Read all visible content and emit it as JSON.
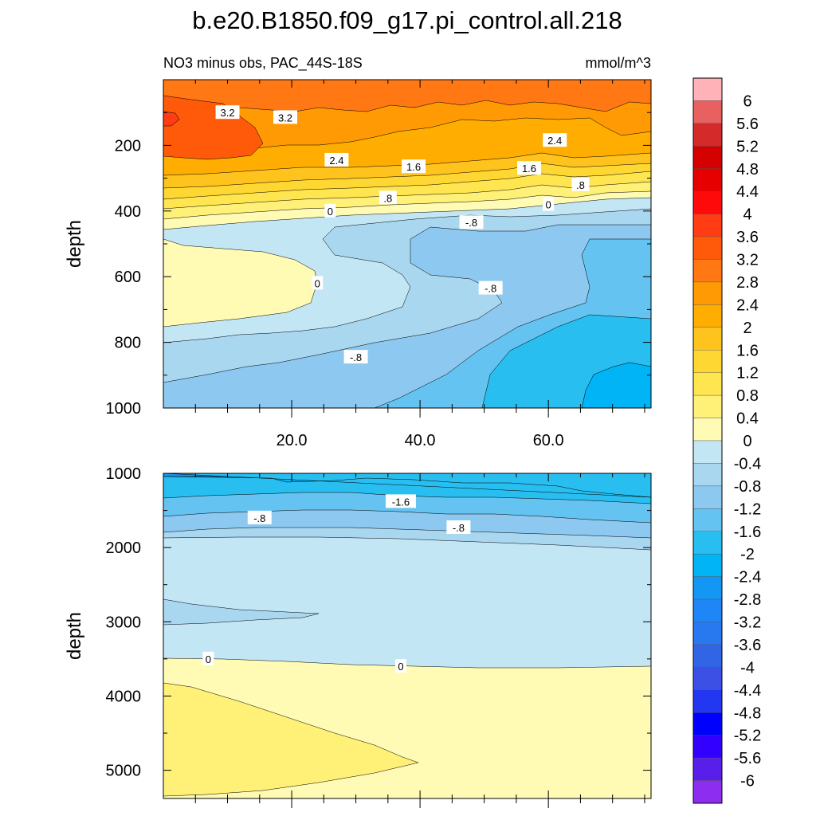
{
  "chart_data": [
    {
      "type": "contour",
      "panel": "upper",
      "title": "b.e20.B1850.f09_g17.pi_control.all.218",
      "subtitle_left": "NO3 minus obs, PAC_44S-18S",
      "subtitle_right": "mmol/m^3",
      "xlabel": "",
      "ylabel": "depth",
      "xlim": [
        0,
        76
      ],
      "ylim": [
        1000,
        0
      ],
      "x_ticks": [
        20,
        40,
        60
      ],
      "x_tick_labels": [
        "20.0",
        "40.0",
        "60.0"
      ],
      "y_ticks": [
        200,
        400,
        600,
        800,
        1000
      ],
      "y_tick_labels": [
        "200",
        "400",
        "600",
        "800",
        "1000"
      ],
      "depth_profile": [
        {
          "depth": 0,
          "range": "2.8 to 3.6"
        },
        {
          "depth": 100,
          "range": "2.8 to 3.6"
        },
        {
          "depth": 200,
          "range": "2.4 to 3.2"
        },
        {
          "depth": 300,
          "range": "0.8 to 1.6"
        },
        {
          "depth": 400,
          "range": "-0.8 to 0"
        },
        {
          "depth": 600,
          "range": "-1.2 to 0.4"
        },
        {
          "depth": 800,
          "range": "-1.6 to -0.4"
        },
        {
          "depth": 1000,
          "range": "-2.4 to -0.8"
        }
      ],
      "contour_labels": [
        {
          "text": "3.2",
          "x": 10,
          "depth": 100
        },
        {
          "text": "3.2",
          "x": 19,
          "depth": 115
        },
        {
          "text": "2.4",
          "x": 27,
          "depth": 245
        },
        {
          "text": "1.6",
          "x": 39,
          "depth": 265
        },
        {
          "text": "1.6",
          "x": 57,
          "depth": 270
        },
        {
          "text": "2.4",
          "x": 61,
          "depth": 185
        },
        {
          "text": ".8",
          "x": 35,
          "depth": 360
        },
        {
          "text": ".8",
          "x": 65,
          "depth": 320
        },
        {
          "text": "0",
          "x": 26,
          "depth": 400
        },
        {
          "text": "0",
          "x": 60,
          "depth": 380
        },
        {
          "text": "-.8",
          "x": 48,
          "depth": 435
        },
        {
          "text": "0",
          "x": 24,
          "depth": 620
        },
        {
          "text": "-.8",
          "x": 51,
          "depth": 635
        },
        {
          "text": "-.8",
          "x": 30,
          "depth": 845
        }
      ]
    },
    {
      "type": "contour",
      "panel": "lower",
      "xlabel": "",
      "ylabel": "depth",
      "xlim": [
        0,
        76
      ],
      "ylim": [
        5380,
        1000
      ],
      "y_ticks": [
        1000,
        2000,
        3000,
        4000,
        5000
      ],
      "y_tick_labels": [
        "1000",
        "2000",
        "3000",
        "4000",
        "5000"
      ],
      "depth_profile": [
        {
          "depth": 1000,
          "range": "-2.4 to -1.2"
        },
        {
          "depth": 1500,
          "range": "-1.2 to -0.8"
        },
        {
          "depth": 2000,
          "range": "-0.4 to 0"
        },
        {
          "depth": 3000,
          "range": "-0.8 to 0"
        },
        {
          "depth": 3600,
          "range": "0 to 0.4"
        },
        {
          "depth": 4500,
          "range": "0 to 0.8"
        },
        {
          "depth": 5300,
          "range": "0 to 0.4"
        }
      ],
      "contour_labels": [
        {
          "text": "-1.6",
          "x": 37,
          "depth": 1380
        },
        {
          "text": "-.8",
          "x": 15,
          "depth": 1600
        },
        {
          "text": "-.8",
          "x": 46,
          "depth": 1730
        },
        {
          "text": "0",
          "x": 7,
          "depth": 3500
        },
        {
          "text": "0",
          "x": 37,
          "depth": 3600
        }
      ]
    },
    {
      "type": "colorbar",
      "levels": [
        "6",
        "5.6",
        "5.2",
        "4.8",
        "4.4",
        "4",
        "3.6",
        "3.2",
        "2.8",
        "2.4",
        "2",
        "1.6",
        "1.2",
        "0.8",
        "0.4",
        "0",
        "-0.4",
        "-0.8",
        "-1.2",
        "-1.6",
        "-2",
        "-2.4",
        "-2.8",
        "-3.2",
        "-3.6",
        "-4",
        "-4.4",
        "-4.8",
        "-5.2",
        "-5.6",
        "-6"
      ],
      "colors_top_to_bottom": [
        "#ffb3b8",
        "#e86060",
        "#d42a2a",
        "#d50000",
        "#e60000",
        "#ff0a0a",
        "#ff3c14",
        "#ff5a0a",
        "#ff7814",
        "#ff9a05",
        "#ffad00",
        "#ffc31e",
        "#ffd732",
        "#ffe650",
        "#fff078",
        "#fffab4",
        "#c3e6f5",
        "#aad7f0",
        "#8cc8ef",
        "#64c3f0",
        "#28bef0",
        "#00b4f5",
        "#1496f5",
        "#1e87f5",
        "#2878f0",
        "#3264e6",
        "#3c50e6",
        "#2337f0",
        "#0000ff",
        "#3200ff",
        "#5a1eeb",
        "#8c2df0"
      ]
    }
  ]
}
